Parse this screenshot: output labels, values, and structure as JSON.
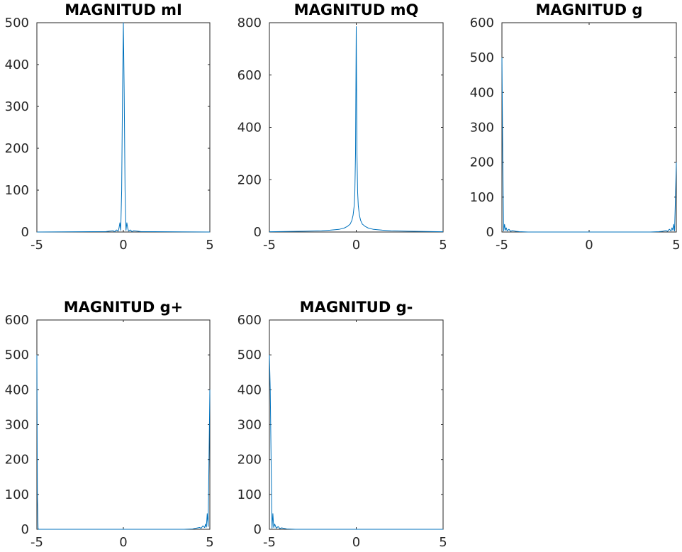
{
  "chart_data": [
    {
      "type": "line",
      "title": "MAGNITUD mI",
      "xlim": [
        -5,
        5
      ],
      "ylim": [
        0,
        500
      ],
      "xticks": [
        "-5",
        "0",
        "5"
      ],
      "yticks": [
        "0",
        "100",
        "200",
        "300",
        "400",
        "500"
      ],
      "color": "#0072BD",
      "series": [
        {
          "x": [
            -5,
            -1.0,
            -0.8,
            -0.6,
            -0.5,
            -0.4,
            -0.3,
            -0.25,
            -0.2,
            -0.15,
            -0.1,
            -0.05,
            0,
            0.05,
            0.1,
            0.15,
            0.2,
            0.25,
            0.3,
            0.4,
            0.5,
            0.6,
            0.8,
            1.0,
            5
          ],
          "y": [
            0,
            1,
            2,
            3,
            1,
            5,
            2,
            10,
            22,
            4,
            100,
            330,
            500,
            330,
            100,
            4,
            22,
            10,
            2,
            5,
            1,
            3,
            2,
            1,
            0
          ]
        }
      ]
    },
    {
      "type": "line",
      "title": "MAGNITUD mQ",
      "xlim": [
        -5,
        5
      ],
      "ylim": [
        0,
        800
      ],
      "xticks": [
        "-5",
        "0",
        "5"
      ],
      "yticks": [
        "0",
        "200",
        "400",
        "600",
        "800"
      ],
      "color": "#0072BD",
      "series": [
        {
          "x": [
            -5,
            -4,
            -3,
            -2,
            -1.5,
            -1,
            -0.7,
            -0.5,
            -0.35,
            -0.25,
            -0.18,
            -0.12,
            -0.08,
            -0.04,
            0,
            0.04,
            0.08,
            0.12,
            0.18,
            0.25,
            0.35,
            0.5,
            0.7,
            1,
            1.5,
            2,
            3,
            4,
            5
          ],
          "y": [
            1,
            2,
            3,
            5,
            7,
            10,
            15,
            22,
            30,
            45,
            65,
            100,
            150,
            300,
            785,
            300,
            150,
            100,
            65,
            45,
            30,
            22,
            15,
            10,
            7,
            5,
            3,
            2,
            1
          ]
        }
      ]
    },
    {
      "type": "line",
      "title": "MAGNITUD g",
      "xlim": [
        -5,
        5
      ],
      "ylim": [
        0,
        600
      ],
      "xticks": [
        "-5",
        "0",
        "5"
      ],
      "yticks": [
        "0",
        "100",
        "200",
        "300",
        "400",
        "500",
        "600"
      ],
      "color": "#0072BD",
      "series": [
        {
          "x": [
            -5,
            -4.95,
            -4.9,
            -4.85,
            -4.8,
            -4.75,
            -4.7,
            -4.6,
            -4.5,
            -4.4,
            -4.2,
            -4.0,
            -3.5,
            0,
            3.5,
            4.0,
            4.2,
            4.4,
            4.5,
            4.6,
            4.7,
            4.75,
            4.8,
            4.85,
            4.9,
            4.95,
            5
          ],
          "y": [
            500,
            200,
            3,
            22,
            5,
            12,
            3,
            8,
            2,
            4,
            2,
            1,
            0,
            0,
            0,
            1,
            2,
            4,
            2,
            8,
            3,
            12,
            5,
            22,
            3,
            100,
            200
          ]
        }
      ]
    },
    {
      "type": "line",
      "title": "MAGNITUD g+",
      "xlim": [
        -5,
        5
      ],
      "ylim": [
        0,
        600
      ],
      "xticks": [
        "-5",
        "0",
        "5"
      ],
      "yticks": [
        "0",
        "100",
        "200",
        "300",
        "400",
        "500",
        "600"
      ],
      "color": "#0072BD",
      "series": [
        {
          "x": [
            -5,
            -4.97,
            -4.93,
            -4.9,
            -4.5,
            0,
            3.5,
            4.0,
            4.2,
            4.4,
            4.5,
            4.6,
            4.7,
            4.75,
            4.8,
            4.85,
            4.9,
            4.95,
            5
          ],
          "y": [
            500,
            100,
            3,
            0,
            0,
            0,
            0,
            1,
            3,
            5,
            3,
            10,
            5,
            15,
            6,
            45,
            8,
            200,
            400
          ]
        }
      ]
    },
    {
      "type": "line",
      "title": "MAGNITUD g-",
      "xlim": [
        -5,
        5
      ],
      "ylim": [
        0,
        600
      ],
      "xticks": [
        "-5",
        "0",
        "5"
      ],
      "yticks": [
        "0",
        "100",
        "200",
        "300",
        "400",
        "500",
        "600"
      ],
      "color": "#0072BD",
      "series": [
        {
          "x": [
            -5,
            -4.95,
            -4.9,
            -4.85,
            -4.8,
            -4.75,
            -4.7,
            -4.6,
            -4.5,
            -4.4,
            -4.3,
            -4.0,
            -3.5,
            0,
            5
          ],
          "y": [
            500,
            400,
            200,
            3,
            45,
            5,
            15,
            3,
            8,
            2,
            4,
            1,
            0,
            0,
            0
          ]
        }
      ]
    }
  ]
}
